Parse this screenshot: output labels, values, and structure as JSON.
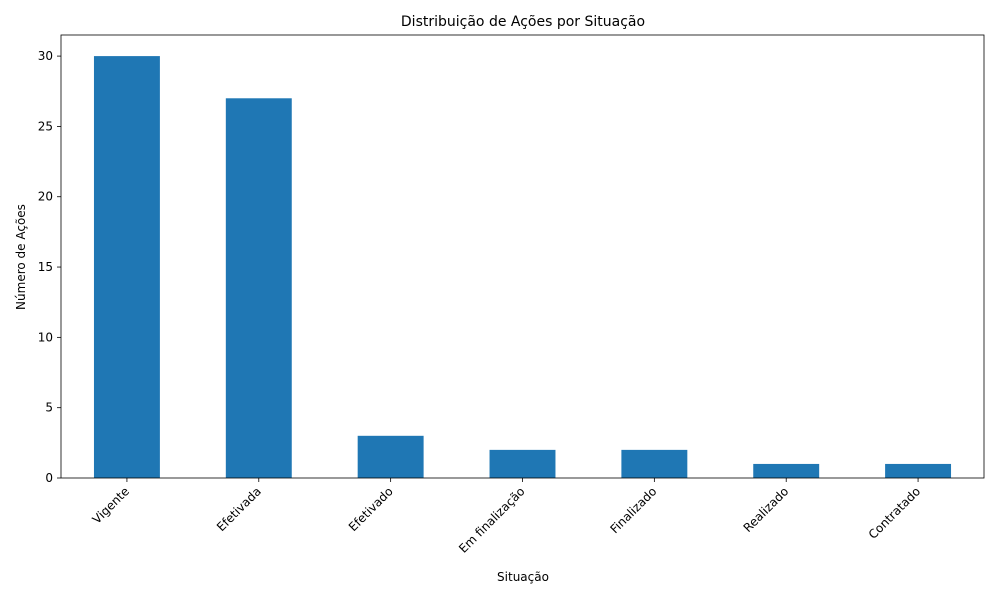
{
  "chart_data": {
    "type": "bar",
    "title": "Distribuição de Ações por Situação",
    "xlabel": "Situação",
    "ylabel": "Número de Ações",
    "categories": [
      "Vigente",
      "Efetivada",
      "Efetivado",
      "Em finalização",
      "Finalizado",
      "Realizado",
      "Contratado"
    ],
    "values": [
      30,
      27,
      3,
      2,
      2,
      1,
      1
    ],
    "ylim": [
      0,
      31.5
    ],
    "yticks": [
      0,
      5,
      10,
      15,
      20,
      25,
      30
    ],
    "grid": false,
    "bar_color": "#1f77b4"
  }
}
